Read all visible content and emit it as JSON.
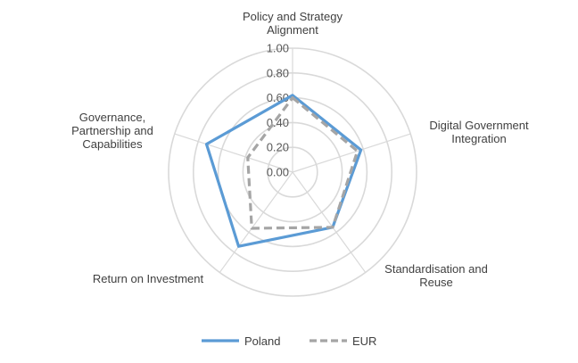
{
  "chart_data": {
    "type": "radar",
    "categories": [
      "Policy and Strategy Alignment",
      "Digital Government Integration",
      "Standardisation and Reuse",
      "Return on Investment",
      "Governance, Partnership and Capabilities"
    ],
    "category_lines": [
      [
        "Policy and Strategy",
        "Alignment"
      ],
      [
        "Digital Government",
        "Integration"
      ],
      [
        "Standardisation and",
        "Reuse"
      ],
      [
        "Return on Investment"
      ],
      [
        "Governance,",
        "Partnership and",
        "Capabilities"
      ]
    ],
    "radial_ticks": [
      "0.00",
      "0.20",
      "0.40",
      "0.60",
      "0.80",
      "1.00"
    ],
    "rlim": [
      0,
      1
    ],
    "series": [
      {
        "name": "Poland",
        "values": [
          0.62,
          0.58,
          0.55,
          0.74,
          0.73
        ],
        "color": "#5b9bd5",
        "dash": "solid"
      },
      {
        "name": "EUR",
        "values": [
          0.6,
          0.55,
          0.55,
          0.56,
          0.38
        ],
        "color": "#a5a5a5",
        "dash": "dashed"
      }
    ],
    "legend_position": "bottom",
    "grid": true
  }
}
